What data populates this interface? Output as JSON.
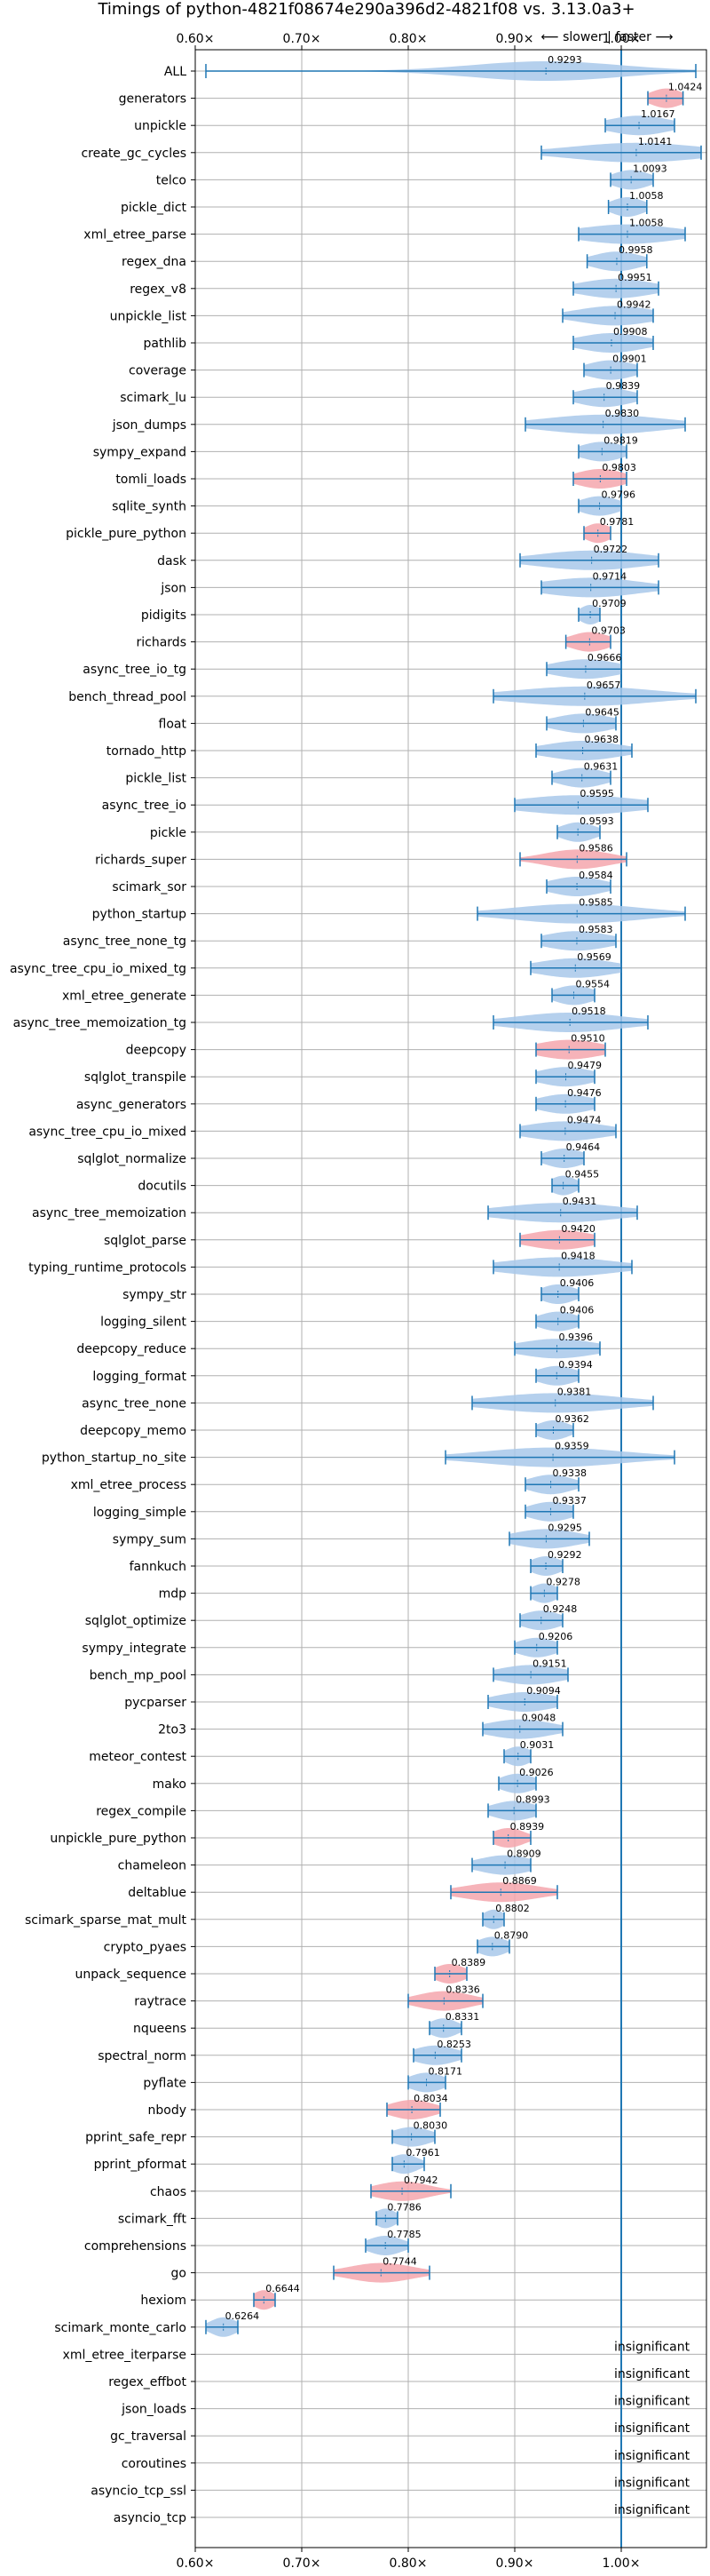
{
  "chart_data": {
    "type": "violin",
    "title": "Timings of python-4821f08674e290a396d2-4821f08 vs. 3.13.0a3+",
    "direction_label": "⟵ slower | faster ⟶",
    "xlim": [
      0.6,
      1.08
    ],
    "xticks": [
      0.6,
      0.7,
      0.8,
      0.9,
      1.0
    ],
    "xtick_labels": [
      "0.60×",
      "0.70×",
      "0.80×",
      "0.90×",
      "1.00×"
    ],
    "reference_line": 1.0,
    "grid": true,
    "colors": {
      "normal": "#a8c8ea",
      "highlight": "#f4a6ad",
      "whisker": "#1f77b4"
    },
    "insignificant_label": "insignificant",
    "benchmarks": [
      {
        "name": "ALL",
        "value": 0.9293,
        "label": "0.9293",
        "min": 0.61,
        "max": 1.07,
        "spread": 0.07,
        "highlight": false
      },
      {
        "name": "generators",
        "value": 1.0424,
        "label": "1.0424",
        "min": 1.025,
        "max": 1.058,
        "spread": 0.015,
        "highlight": true
      },
      {
        "name": "unpickle",
        "value": 1.0167,
        "label": "1.0167",
        "min": 0.985,
        "max": 1.05,
        "spread": 0.028,
        "highlight": false
      },
      {
        "name": "create_gc_cycles",
        "value": 1.0141,
        "label": "1.0141",
        "min": 0.925,
        "max": 1.075,
        "spread": 0.06,
        "highlight": false
      },
      {
        "name": "telco",
        "value": 1.0093,
        "label": "1.0093",
        "min": 0.99,
        "max": 1.03,
        "spread": 0.017,
        "highlight": false
      },
      {
        "name": "pickle_dict",
        "value": 1.0058,
        "label": "1.0058",
        "min": 0.988,
        "max": 1.024,
        "spread": 0.015,
        "highlight": false
      },
      {
        "name": "xml_etree_parse",
        "value": 1.0058,
        "label": "1.0058",
        "min": 0.96,
        "max": 1.06,
        "spread": 0.045,
        "highlight": false
      },
      {
        "name": "regex_dna",
        "value": 0.9958,
        "label": "0.9958",
        "min": 0.968,
        "max": 1.024,
        "spread": 0.022,
        "highlight": false
      },
      {
        "name": "regex_v8",
        "value": 0.9951,
        "label": "0.9951",
        "min": 0.955,
        "max": 1.035,
        "spread": 0.033,
        "highlight": false
      },
      {
        "name": "unpickle_list",
        "value": 0.9942,
        "label": "0.9942",
        "min": 0.945,
        "max": 1.03,
        "spread": 0.035,
        "highlight": false
      },
      {
        "name": "pathlib",
        "value": 0.9908,
        "label": "0.9908",
        "min": 0.955,
        "max": 1.03,
        "spread": 0.03,
        "highlight": false
      },
      {
        "name": "coverage",
        "value": 0.9901,
        "label": "0.9901",
        "min": 0.965,
        "max": 1.015,
        "spread": 0.022,
        "highlight": false
      },
      {
        "name": "scimark_lu",
        "value": 0.9839,
        "label": "0.9839",
        "min": 0.955,
        "max": 1.015,
        "spread": 0.025,
        "highlight": false
      },
      {
        "name": "json_dumps",
        "value": 0.983,
        "label": "0.9830",
        "min": 0.91,
        "max": 1.06,
        "spread": 0.055,
        "highlight": false
      },
      {
        "name": "sympy_expand",
        "value": 0.9819,
        "label": "0.9819",
        "min": 0.96,
        "max": 1.005,
        "spread": 0.02,
        "highlight": false
      },
      {
        "name": "tomli_loads",
        "value": 0.9803,
        "label": "0.9803",
        "min": 0.955,
        "max": 1.005,
        "spread": 0.022,
        "highlight": true
      },
      {
        "name": "sqlite_synth",
        "value": 0.9796,
        "label": "0.9796",
        "min": 0.96,
        "max": 1.0,
        "spread": 0.018,
        "highlight": false
      },
      {
        "name": "pickle_pure_python",
        "value": 0.9781,
        "label": "0.9781",
        "min": 0.965,
        "max": 0.99,
        "spread": 0.012,
        "highlight": true
      },
      {
        "name": "dask",
        "value": 0.9722,
        "label": "0.9722",
        "min": 0.905,
        "max": 1.035,
        "spread": 0.05,
        "highlight": false
      },
      {
        "name": "json",
        "value": 0.9714,
        "label": "0.9714",
        "min": 0.925,
        "max": 1.035,
        "spread": 0.045,
        "highlight": false
      },
      {
        "name": "pidigits",
        "value": 0.9709,
        "label": "0.9709",
        "min": 0.96,
        "max": 0.98,
        "spread": 0.01,
        "highlight": false
      },
      {
        "name": "richards",
        "value": 0.9703,
        "label": "0.9703",
        "min": 0.948,
        "max": 0.99,
        "spread": 0.018,
        "highlight": true
      },
      {
        "name": "async_tree_io_tg",
        "value": 0.9666,
        "label": "0.9666",
        "min": 0.93,
        "max": 1.0,
        "spread": 0.03,
        "highlight": false
      },
      {
        "name": "bench_thread_pool",
        "value": 0.9657,
        "label": "0.9657",
        "min": 0.88,
        "max": 1.07,
        "spread": 0.065,
        "highlight": false
      },
      {
        "name": "float",
        "value": 0.9645,
        "label": "0.9645",
        "min": 0.93,
        "max": 0.995,
        "spread": 0.027,
        "highlight": false
      },
      {
        "name": "tornado_http",
        "value": 0.9638,
        "label": "0.9638",
        "min": 0.92,
        "max": 1.01,
        "spread": 0.035,
        "highlight": false
      },
      {
        "name": "pickle_list",
        "value": 0.9631,
        "label": "0.9631",
        "min": 0.935,
        "max": 0.99,
        "spread": 0.022,
        "highlight": false
      },
      {
        "name": "async_tree_io",
        "value": 0.9595,
        "label": "0.9595",
        "min": 0.9,
        "max": 1.025,
        "spread": 0.055,
        "highlight": false
      },
      {
        "name": "pickle",
        "value": 0.9593,
        "label": "0.9593",
        "min": 0.94,
        "max": 0.98,
        "spread": 0.016,
        "highlight": false
      },
      {
        "name": "richards_super",
        "value": 0.9586,
        "label": "0.9586",
        "min": 0.905,
        "max": 1.005,
        "spread": 0.03,
        "highlight": true
      },
      {
        "name": "scimark_sor",
        "value": 0.9584,
        "label": "0.9584",
        "min": 0.93,
        "max": 0.99,
        "spread": 0.025,
        "highlight": false
      },
      {
        "name": "python_startup",
        "value": 0.9585,
        "label": "0.9585",
        "min": 0.865,
        "max": 1.06,
        "spread": 0.06,
        "highlight": false
      },
      {
        "name": "async_tree_none_tg",
        "value": 0.9583,
        "label": "0.9583",
        "min": 0.925,
        "max": 0.995,
        "spread": 0.03,
        "highlight": false
      },
      {
        "name": "async_tree_cpu_io_mixed_tg",
        "value": 0.9569,
        "label": "0.9569",
        "min": 0.915,
        "max": 1.0,
        "spread": 0.035,
        "highlight": false
      },
      {
        "name": "xml_etree_generate",
        "value": 0.9554,
        "label": "0.9554",
        "min": 0.935,
        "max": 0.975,
        "spread": 0.018,
        "highlight": false
      },
      {
        "name": "async_tree_memoization_tg",
        "value": 0.9518,
        "label": "0.9518",
        "min": 0.88,
        "max": 1.025,
        "spread": 0.05,
        "highlight": false
      },
      {
        "name": "deepcopy",
        "value": 0.951,
        "label": "0.9510",
        "min": 0.92,
        "max": 0.985,
        "spread": 0.03,
        "highlight": true
      },
      {
        "name": "sqlglot_transpile",
        "value": 0.9479,
        "label": "0.9479",
        "min": 0.92,
        "max": 0.975,
        "spread": 0.025,
        "highlight": false
      },
      {
        "name": "async_generators",
        "value": 0.9476,
        "label": "0.9476",
        "min": 0.92,
        "max": 0.975,
        "spread": 0.025,
        "highlight": false
      },
      {
        "name": "async_tree_cpu_io_mixed",
        "value": 0.9474,
        "label": "0.9474",
        "min": 0.905,
        "max": 0.995,
        "spread": 0.037,
        "highlight": false
      },
      {
        "name": "sqlglot_normalize",
        "value": 0.9464,
        "label": "0.9464",
        "min": 0.925,
        "max": 0.965,
        "spread": 0.018,
        "highlight": false
      },
      {
        "name": "docutils",
        "value": 0.9455,
        "label": "0.9455",
        "min": 0.935,
        "max": 0.96,
        "spread": 0.012,
        "highlight": false
      },
      {
        "name": "async_tree_memoization",
        "value": 0.9431,
        "label": "0.9431",
        "min": 0.875,
        "max": 1.015,
        "spread": 0.055,
        "highlight": false
      },
      {
        "name": "sqlglot_parse",
        "value": 0.942,
        "label": "0.9420",
        "min": 0.905,
        "max": 0.975,
        "spread": 0.03,
        "highlight": true
      },
      {
        "name": "typing_runtime_protocols",
        "value": 0.9418,
        "label": "0.9418",
        "min": 0.88,
        "max": 1.01,
        "spread": 0.05,
        "highlight": false
      },
      {
        "name": "sympy_str",
        "value": 0.9406,
        "label": "0.9406",
        "min": 0.925,
        "max": 0.96,
        "spread": 0.016,
        "highlight": false
      },
      {
        "name": "logging_silent",
        "value": 0.9406,
        "label": "0.9406",
        "min": 0.92,
        "max": 0.96,
        "spread": 0.018,
        "highlight": false
      },
      {
        "name": "deepcopy_reduce",
        "value": 0.9396,
        "label": "0.9396",
        "min": 0.9,
        "max": 0.98,
        "spread": 0.035,
        "highlight": false
      },
      {
        "name": "logging_format",
        "value": 0.9394,
        "label": "0.9394",
        "min": 0.92,
        "max": 0.96,
        "spread": 0.018,
        "highlight": false
      },
      {
        "name": "async_tree_none",
        "value": 0.9381,
        "label": "0.9381",
        "min": 0.86,
        "max": 1.03,
        "spread": 0.06,
        "highlight": false
      },
      {
        "name": "deepcopy_memo",
        "value": 0.9362,
        "label": "0.9362",
        "min": 0.92,
        "max": 0.955,
        "spread": 0.015,
        "highlight": false
      },
      {
        "name": "python_startup_no_site",
        "value": 0.9359,
        "label": "0.9359",
        "min": 0.835,
        "max": 1.05,
        "spread": 0.065,
        "highlight": false
      },
      {
        "name": "xml_etree_process",
        "value": 0.9338,
        "label": "0.9338",
        "min": 0.91,
        "max": 0.96,
        "spread": 0.02,
        "highlight": false
      },
      {
        "name": "logging_simple",
        "value": 0.9337,
        "label": "0.9337",
        "min": 0.91,
        "max": 0.955,
        "spread": 0.02,
        "highlight": false
      },
      {
        "name": "sympy_sum",
        "value": 0.9295,
        "label": "0.9295",
        "min": 0.895,
        "max": 0.97,
        "spread": 0.03,
        "highlight": false
      },
      {
        "name": "fannkuch",
        "value": 0.9292,
        "label": "0.9292",
        "min": 0.915,
        "max": 0.945,
        "spread": 0.014,
        "highlight": false
      },
      {
        "name": "mdp",
        "value": 0.9278,
        "label": "0.9278",
        "min": 0.915,
        "max": 0.94,
        "spread": 0.012,
        "highlight": false
      },
      {
        "name": "sqlglot_optimize",
        "value": 0.9248,
        "label": "0.9248",
        "min": 0.905,
        "max": 0.945,
        "spread": 0.018,
        "highlight": false
      },
      {
        "name": "sympy_integrate",
        "value": 0.9206,
        "label": "0.9206",
        "min": 0.9,
        "max": 0.94,
        "spread": 0.018,
        "highlight": false
      },
      {
        "name": "bench_mp_pool",
        "value": 0.9151,
        "label": "0.9151",
        "min": 0.88,
        "max": 0.95,
        "spread": 0.03,
        "highlight": false
      },
      {
        "name": "pycparser",
        "value": 0.9094,
        "label": "0.9094",
        "min": 0.875,
        "max": 0.94,
        "spread": 0.028,
        "highlight": false
      },
      {
        "name": "2to3",
        "value": 0.9048,
        "label": "0.9048",
        "min": 0.87,
        "max": 0.945,
        "spread": 0.03,
        "highlight": false
      },
      {
        "name": "meteor_contest",
        "value": 0.9031,
        "label": "0.9031",
        "min": 0.89,
        "max": 0.915,
        "spread": 0.012,
        "highlight": false
      },
      {
        "name": "mako",
        "value": 0.9026,
        "label": "0.9026",
        "min": 0.885,
        "max": 0.92,
        "spread": 0.016,
        "highlight": false
      },
      {
        "name": "regex_compile",
        "value": 0.8993,
        "label": "0.8993",
        "min": 0.875,
        "max": 0.92,
        "spread": 0.02,
        "highlight": false
      },
      {
        "name": "unpickle_pure_python",
        "value": 0.8939,
        "label": "0.8939",
        "min": 0.88,
        "max": 0.915,
        "spread": 0.015,
        "highlight": true
      },
      {
        "name": "chameleon",
        "value": 0.8909,
        "label": "0.8909",
        "min": 0.86,
        "max": 0.915,
        "spread": 0.025,
        "highlight": false
      },
      {
        "name": "deltablue",
        "value": 0.8869,
        "label": "0.8869",
        "min": 0.84,
        "max": 0.94,
        "spread": 0.035,
        "highlight": true
      },
      {
        "name": "scimark_sparse_mat_mult",
        "value": 0.8802,
        "label": "0.8802",
        "min": 0.87,
        "max": 0.89,
        "spread": 0.01,
        "highlight": false
      },
      {
        "name": "crypto_pyaes",
        "value": 0.879,
        "label": "0.8790",
        "min": 0.865,
        "max": 0.895,
        "spread": 0.014,
        "highlight": false
      },
      {
        "name": "unpack_sequence",
        "value": 0.8389,
        "label": "0.8389",
        "min": 0.825,
        "max": 0.855,
        "spread": 0.014,
        "highlight": true
      },
      {
        "name": "raytrace",
        "value": 0.8336,
        "label": "0.8336",
        "min": 0.8,
        "max": 0.87,
        "spread": 0.025,
        "highlight": true
      },
      {
        "name": "nqueens",
        "value": 0.8331,
        "label": "0.8331",
        "min": 0.82,
        "max": 0.85,
        "spread": 0.013,
        "highlight": false
      },
      {
        "name": "spectral_norm",
        "value": 0.8253,
        "label": "0.8253",
        "min": 0.805,
        "max": 0.85,
        "spread": 0.02,
        "highlight": false
      },
      {
        "name": "pyflate",
        "value": 0.8171,
        "label": "0.8171",
        "min": 0.8,
        "max": 0.835,
        "spread": 0.016,
        "highlight": false
      },
      {
        "name": "nbody",
        "value": 0.8034,
        "label": "0.8034",
        "min": 0.78,
        "max": 0.83,
        "spread": 0.02,
        "highlight": true
      },
      {
        "name": "pprint_safe_repr",
        "value": 0.803,
        "label": "0.8030",
        "min": 0.785,
        "max": 0.825,
        "spread": 0.018,
        "highlight": false
      },
      {
        "name": "pprint_pformat",
        "value": 0.7961,
        "label": "0.7961",
        "min": 0.785,
        "max": 0.815,
        "spread": 0.013,
        "highlight": false
      },
      {
        "name": "chaos",
        "value": 0.7942,
        "label": "0.7942",
        "min": 0.765,
        "max": 0.84,
        "spread": 0.025,
        "highlight": true
      },
      {
        "name": "scimark_fft",
        "value": 0.7786,
        "label": "0.7786",
        "min": 0.77,
        "max": 0.79,
        "spread": 0.01,
        "highlight": false
      },
      {
        "name": "comprehensions",
        "value": 0.7785,
        "label": "0.7785",
        "min": 0.76,
        "max": 0.8,
        "spread": 0.016,
        "highlight": false
      },
      {
        "name": "go",
        "value": 0.7744,
        "label": "0.7744",
        "min": 0.73,
        "max": 0.82,
        "spread": 0.03,
        "highlight": true
      },
      {
        "name": "hexiom",
        "value": 0.6644,
        "label": "0.6644",
        "min": 0.655,
        "max": 0.675,
        "spread": 0.01,
        "highlight": true
      },
      {
        "name": "scimark_monte_carlo",
        "value": 0.6264,
        "label": "0.6264",
        "min": 0.61,
        "max": 0.64,
        "spread": 0.012,
        "highlight": false
      },
      {
        "name": "xml_etree_iterparse",
        "insignificant": true
      },
      {
        "name": "regex_effbot",
        "insignificant": true
      },
      {
        "name": "json_loads",
        "insignificant": true
      },
      {
        "name": "gc_traversal",
        "insignificant": true
      },
      {
        "name": "coroutines",
        "insignificant": true
      },
      {
        "name": "asyncio_tcp_ssl",
        "insignificant": true
      },
      {
        "name": "asyncio_tcp",
        "insignificant": true
      }
    ]
  }
}
